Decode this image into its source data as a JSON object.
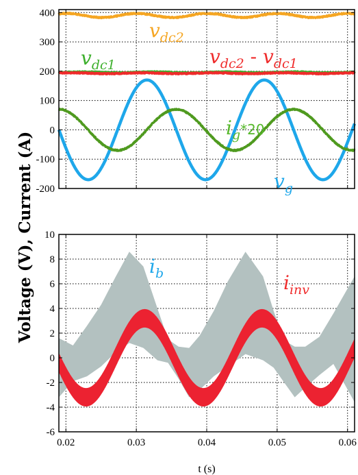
{
  "axis_title": "Voltage (V), Current (A)",
  "chart_data": [
    {
      "type": "line",
      "xlabel": "",
      "ylabel": "",
      "xlim": [
        0.019,
        0.061
      ],
      "ylim": [
        -200,
        410
      ],
      "grid": true,
      "yticks": [
        400,
        300,
        200,
        100,
        0,
        -100,
        -200
      ],
      "xticks": [
        0.02,
        0.03,
        0.04,
        0.05,
        0.06
      ],
      "series": [
        {
          "color": "#f5a623",
          "form": "ripple",
          "mean": 390,
          "amplitude": 7,
          "frequency_hz": 100,
          "phase": 1.5,
          "noise": 2
        },
        {
          "color": "#3daf2c",
          "form": "ripple",
          "mean": 196,
          "amplitude": 1.5,
          "frequency_hz": 100,
          "phase": 0,
          "noise": 2
        },
        {
          "color": "#ef2b2b",
          "form": "ripple",
          "mean": 193,
          "amplitude": 1.5,
          "frequency_hz": 100,
          "phase": 1,
          "noise": 2
        },
        {
          "color": "#1ea7ea",
          "form": "sine",
          "mean": 0,
          "amplitude": 170,
          "frequency_hz": 60,
          "phase": 2.26,
          "noise": 0
        },
        {
          "color": "#4f9a1f",
          "form": "sine",
          "mean": 0,
          "amplitude": 70,
          "frequency_hz": 60,
          "phase": 0.7,
          "noise": 2
        }
      ],
      "annotations": [
        {
          "main": "v",
          "sub": "dc2",
          "color": "#f5a623"
        },
        {
          "main": "v",
          "sub": "dc1",
          "color": "#3daf2c"
        },
        {
          "main": "v",
          "sub": "dc2",
          "mid": " - ",
          "main2": "v",
          "sub2": "dc1",
          "color": "#ef2b2b"
        },
        {
          "main": "i",
          "sub": "g",
          "suffix": "*20",
          "color": "#56b82b"
        },
        {
          "main": "v",
          "sub": "g",
          "color": "#1ea7ea"
        }
      ]
    },
    {
      "type": "area",
      "xlabel": "t (s)",
      "ylabel": "",
      "xlim": [
        0.019,
        0.061
      ],
      "ylim": [
        -6,
        10
      ],
      "grid": true,
      "yticks": [
        10,
        8,
        6,
        4,
        2,
        0,
        -2,
        -4,
        -6
      ],
      "xticks": [
        0.02,
        0.03,
        0.04,
        0.05,
        0.06
      ],
      "series": [
        {
          "color": "#b3c1c0",
          "form": "band",
          "upper": [
            [
              0.019,
              1.6
            ],
            [
              0.021,
              1.0
            ],
            [
              0.023,
              2.6
            ],
            [
              0.025,
              4.3
            ],
            [
              0.027,
              6.5
            ],
            [
              0.029,
              8.6
            ],
            [
              0.031,
              7.4
            ],
            [
              0.033,
              4.0
            ],
            [
              0.0345,
              1.5
            ],
            [
              0.036,
              0.9
            ],
            [
              0.0375,
              0.8
            ],
            [
              0.039,
              1.8
            ],
            [
              0.041,
              3.8
            ],
            [
              0.043,
              6.2
            ],
            [
              0.0455,
              8.6
            ],
            [
              0.048,
              6.6
            ],
            [
              0.0495,
              3.8
            ],
            [
              0.051,
              1.4
            ],
            [
              0.0525,
              0.9
            ],
            [
              0.054,
              0.9
            ],
            [
              0.056,
              1.7
            ],
            [
              0.058,
              3.6
            ],
            [
              0.061,
              6.6
            ]
          ],
          "lower": [
            [
              0.019,
              -3.2
            ],
            [
              0.021,
              -1.9
            ],
            [
              0.023,
              -1.5
            ],
            [
              0.025,
              -0.7
            ],
            [
              0.027,
              0.4
            ],
            [
              0.029,
              1.2
            ],
            [
              0.031,
              0.8
            ],
            [
              0.033,
              -0.2
            ],
            [
              0.0345,
              -0.4
            ],
            [
              0.036,
              -1.7
            ],
            [
              0.0375,
              -3.2
            ],
            [
              0.039,
              -2.6
            ],
            [
              0.041,
              -1.5
            ],
            [
              0.043,
              -0.7
            ],
            [
              0.0455,
              0.3
            ],
            [
              0.048,
              -0.2
            ],
            [
              0.0495,
              -0.8
            ],
            [
              0.051,
              -2.0
            ],
            [
              0.0525,
              -3.2
            ],
            [
              0.054,
              -2.4
            ],
            [
              0.056,
              -1.4
            ],
            [
              0.058,
              -0.5
            ],
            [
              0.061,
              -3.6
            ]
          ]
        },
        {
          "color": "#ec2231",
          "form": "thick-sine",
          "mean": 0,
          "amplitude": 3.2,
          "frequency_hz": 60,
          "phase": 2.38,
          "band_halfwidth": 0.72
        }
      ],
      "annotations": [
        {
          "main": "i",
          "sub": "b",
          "color": "#1ea7ea"
        },
        {
          "main": "i",
          "sub": "inv",
          "color": "#ef2b2b"
        }
      ]
    }
  ]
}
